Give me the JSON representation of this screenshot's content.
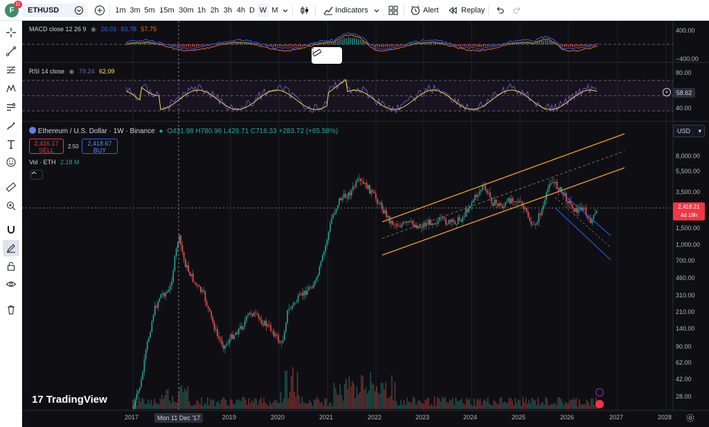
{
  "avatar": {
    "initial": "F",
    "badge": "11"
  },
  "toolbar": {
    "symbol": "ETHUSD",
    "intervals": [
      "1m",
      "3m",
      "5m",
      "15m",
      "30m",
      "1h",
      "2h",
      "3h",
      "4h",
      "D",
      "W",
      "M"
    ],
    "active_interval": "W",
    "indicators_label": "Indicators",
    "alert_label": "Alert",
    "replay_label": "Replay"
  },
  "left_toolbar": {
    "tools": [
      "crosshair-icon",
      "trend-line-icon",
      "fib-retracement-icon",
      "pattern-icon",
      "position-icon",
      "brush-icon",
      "text-icon",
      "emoji-icon",
      "ruler-icon",
      "zoom-in-icon",
      "magnet-icon",
      "drawing-mode-icon",
      "lock-icon",
      "eye-icon",
      "trash-icon"
    ]
  },
  "macd": {
    "title": "MACD close 12 26 9",
    "v1": "26.03",
    "v2": "83.78",
    "v3": "57.75",
    "axis_top": "400.00",
    "axis_bottom": "−400.00"
  },
  "rsi": {
    "title": "RSI 14 close",
    "v1": "79.24",
    "v2": "62.09",
    "axis_top": "80.00",
    "axis_bottom": "40.00",
    "current": "58.62"
  },
  "main": {
    "title": "Ethereum / U.S. Dollar · 1W · Binance",
    "ohlc": "O431.98 H780.96 L429.71 C716.33 +283.72 (+65.58%)",
    "sell_price": "2,416.17",
    "sell_label": "SELL",
    "spread": "2.50",
    "buy_price": "2,418.67",
    "buy_label": "BUY",
    "vol_label": "Vol · ETH",
    "vol_value": "2.18 M",
    "currency": "USD",
    "last_price": "2,418.21",
    "countdown": "4d 19h",
    "watermark": "TradingView"
  },
  "price_axis": [
    "8,000.00",
    "5,500.00",
    "3,500.00",
    "1,500.00",
    "1,000.00",
    "700.00",
    "460.00",
    "310.00",
    "210.00",
    "140.00",
    "90.00",
    "62.00",
    "42.00",
    "28.00"
  ],
  "time_axis": [
    "2017",
    "2019",
    "2020",
    "2021",
    "2022",
    "2023",
    "2024",
    "2025",
    "2026",
    "2027",
    "2028"
  ],
  "crosshair_date": "Mon 11 Dec '17",
  "colors": {
    "up": "#26a69a",
    "down": "#ef5350",
    "channel": "#f7a21b",
    "macd_line": "#2962ff",
    "signal_line": "#ff6d00",
    "rsi_line": "#7e57c2",
    "rsi_ma": "#ffeb3b",
    "background": "#0f0f13"
  }
}
